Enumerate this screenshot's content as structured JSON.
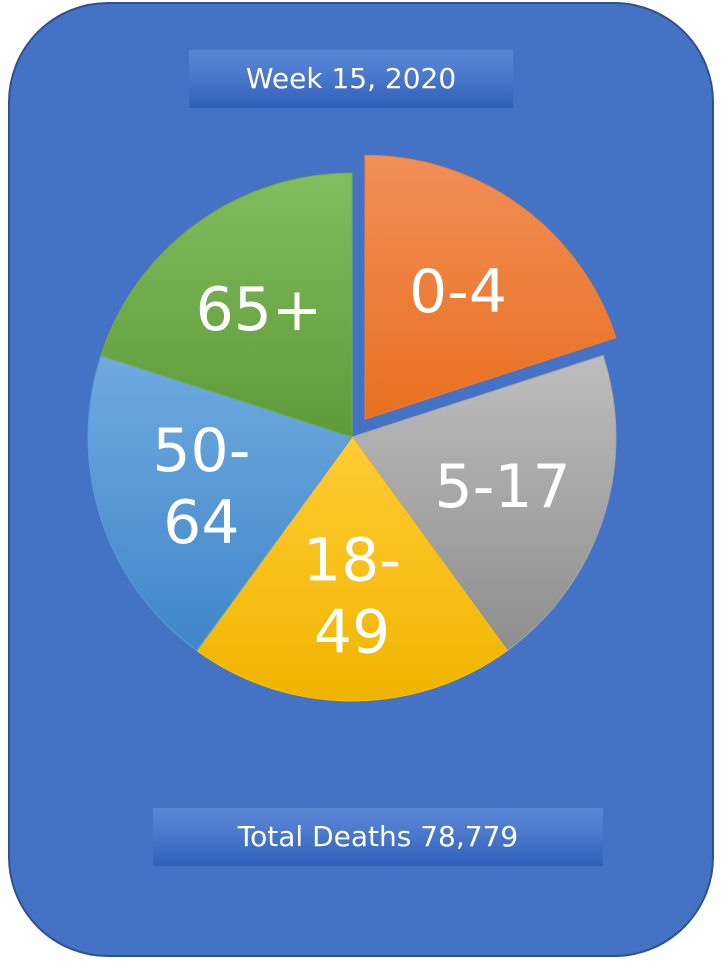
{
  "header": {
    "title": "Week 15,  2020"
  },
  "footer": {
    "total_label": "Total Deaths 78,779"
  },
  "chart_data": {
    "type": "pie",
    "title": "Week 15,  2020",
    "exploded": "0-4",
    "slices": [
      {
        "label": "0-4",
        "label_lines": [
          "0-4"
        ],
        "value": 20,
        "color": "#ed7d31"
      },
      {
        "label": "5-17",
        "label_lines": [
          "5-17"
        ],
        "value": 20,
        "color": "#a5a5a5"
      },
      {
        "label": "18-49",
        "label_lines": [
          "18-",
          "49"
        ],
        "value": 20,
        "color": "#ffc000"
      },
      {
        "label": "50-64",
        "label_lines": [
          "50-",
          "64"
        ],
        "value": 20,
        "color": "#5b9bd5"
      },
      {
        "label": "65+",
        "label_lines": [
          "65+"
        ],
        "value": 20,
        "color": "#70ad47"
      }
    ]
  }
}
